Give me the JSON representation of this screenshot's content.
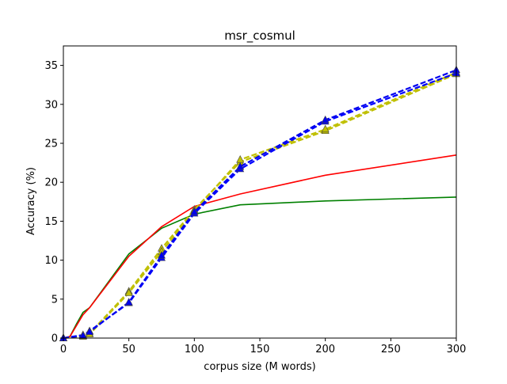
{
  "chart_data": {
    "type": "line",
    "title": "msr_cosmul",
    "xlabel": "corpus size (M words)",
    "ylabel": "Accuracy (%)",
    "xlim": [
      0,
      300
    ],
    "ylim": [
      0,
      37.5
    ],
    "xticks": [
      0,
      50,
      100,
      150,
      200,
      250,
      300
    ],
    "yticks": [
      0,
      5,
      10,
      15,
      20,
      25,
      30,
      35
    ],
    "grid": false,
    "legend": null,
    "series": [
      {
        "color": "#008000",
        "linestyle": "solid",
        "marker": "none",
        "x": [
          0,
          5,
          10,
          15,
          20,
          50,
          75,
          100,
          135,
          200,
          300
        ],
        "y": [
          0.0,
          0.2,
          1.8,
          3.3,
          3.9,
          10.8,
          14.1,
          15.9,
          17.1,
          17.6,
          18.1
        ]
      },
      {
        "color": "#ff0000",
        "linestyle": "solid",
        "marker": "none",
        "x": [
          0,
          5,
          10,
          15,
          20,
          50,
          75,
          100,
          135,
          200,
          300
        ],
        "y": [
          0.0,
          0.2,
          1.6,
          3.0,
          3.9,
          10.5,
          14.3,
          16.9,
          18.5,
          20.9,
          23.5
        ]
      },
      {
        "color": "#bfbf00",
        "linestyle": "dashed",
        "marker": "triangle",
        "x": [
          0,
          15,
          20,
          50,
          75,
          100,
          135,
          200,
          300
        ],
        "y": [
          0.0,
          0.3,
          0.6,
          6.0,
          11.5,
          16.5,
          22.6,
          26.6,
          33.9
        ]
      },
      {
        "color": "#c0c000",
        "linestyle": "dashed",
        "marker": "triangle",
        "x": [
          0,
          15,
          20,
          50,
          75,
          100,
          135,
          200,
          300
        ],
        "y": [
          0.0,
          0.2,
          0.5,
          5.8,
          11.1,
          16.3,
          22.9,
          26.8,
          34.1
        ]
      },
      {
        "color": "#0000ff",
        "linestyle": "dashed",
        "marker": "triangle",
        "x": [
          0,
          15,
          20,
          50,
          75,
          100,
          135,
          200,
          300
        ],
        "y": [
          0.0,
          0.4,
          0.9,
          4.5,
          10.3,
          16.0,
          21.7,
          27.8,
          34.0
        ]
      },
      {
        "color": "#0000ee",
        "linestyle": "dashed",
        "marker": "triangle",
        "x": [
          0,
          15,
          20,
          50,
          75,
          100,
          135,
          200,
          300
        ],
        "y": [
          0.0,
          0.3,
          0.8,
          4.6,
          10.6,
          16.2,
          22.0,
          28.0,
          34.4
        ]
      }
    ]
  }
}
